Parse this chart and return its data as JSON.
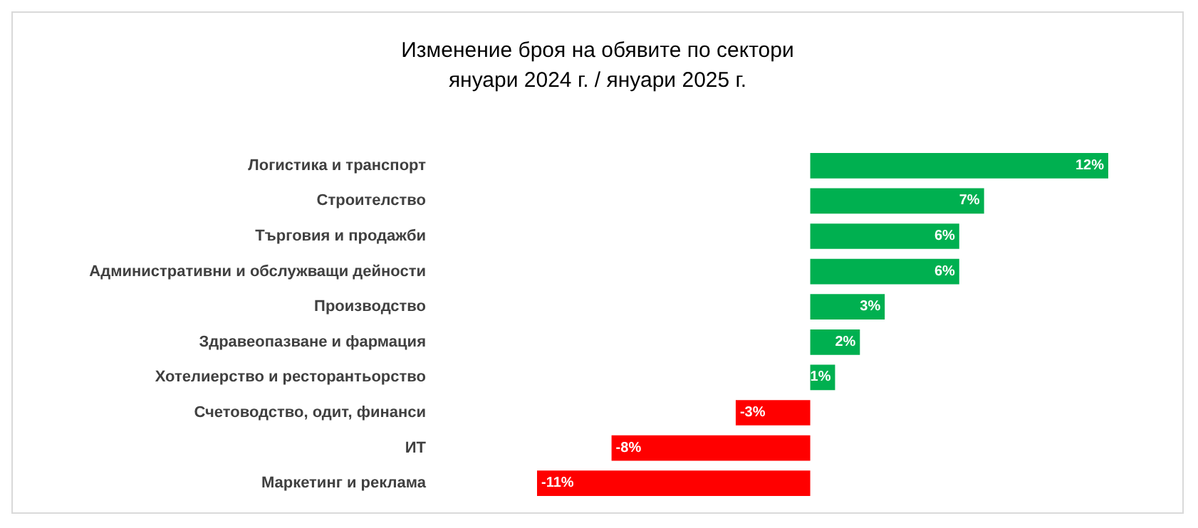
{
  "chart_data": {
    "type": "bar",
    "orientation": "horizontal",
    "title": "Изменение броя на обявите по сектори",
    "subtitle": "януари 2024 г. / януари 2025 г.",
    "categories": [
      "Логистика и транспорт",
      "Строителство",
      "Търговия и продажби",
      "Административни и обслужващи дейности",
      "Производство",
      "Здравеопазване и фармация",
      "Хотелиерство и ресторантьорство",
      "Счетоводство, одит, финанси",
      "ИТ",
      "Маркетинг и реклама"
    ],
    "values": [
      12,
      7,
      6,
      6,
      3,
      2,
      1,
      -3,
      -8,
      -11
    ],
    "value_labels": [
      "12%",
      "7%",
      "6%",
      "6%",
      "3%",
      "2%",
      "1%",
      "-3%",
      "-8%",
      "-11%"
    ],
    "colors": [
      "#00b050",
      "#00b050",
      "#00b050",
      "#00b050",
      "#00b050",
      "#00b050",
      "#00b050",
      "#ff0000",
      "#ff0000",
      "#ff0000"
    ],
    "grid": false,
    "tick_labels": "y"
  }
}
